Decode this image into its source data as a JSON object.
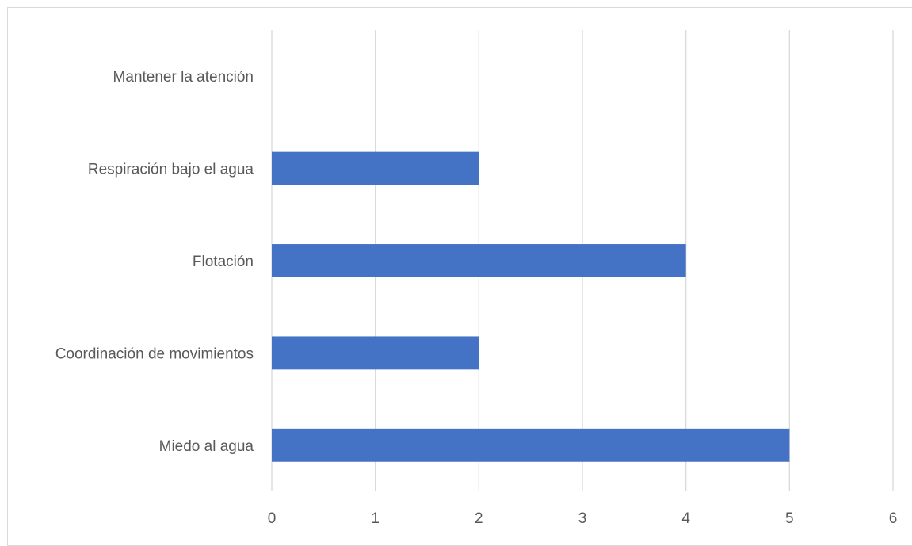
{
  "chart_data": {
    "type": "bar",
    "orientation": "horizontal",
    "categories": [
      "Miedo al agua",
      "Coordinación de movimientos",
      "Flotación",
      "Respiración bajo el agua",
      "Mantener la atención"
    ],
    "values": [
      5,
      2,
      4,
      2,
      0
    ],
    "xlim": [
      0,
      6
    ],
    "xticks": [
      "0",
      "1",
      "2",
      "3",
      "4",
      "5",
      "6"
    ],
    "title": "",
    "xlabel": "",
    "ylabel": "",
    "grid": "vertical",
    "legend": "none",
    "bar_color": "#4472c4",
    "grid_color": "#d9d9d9",
    "text_color": "#595959"
  }
}
